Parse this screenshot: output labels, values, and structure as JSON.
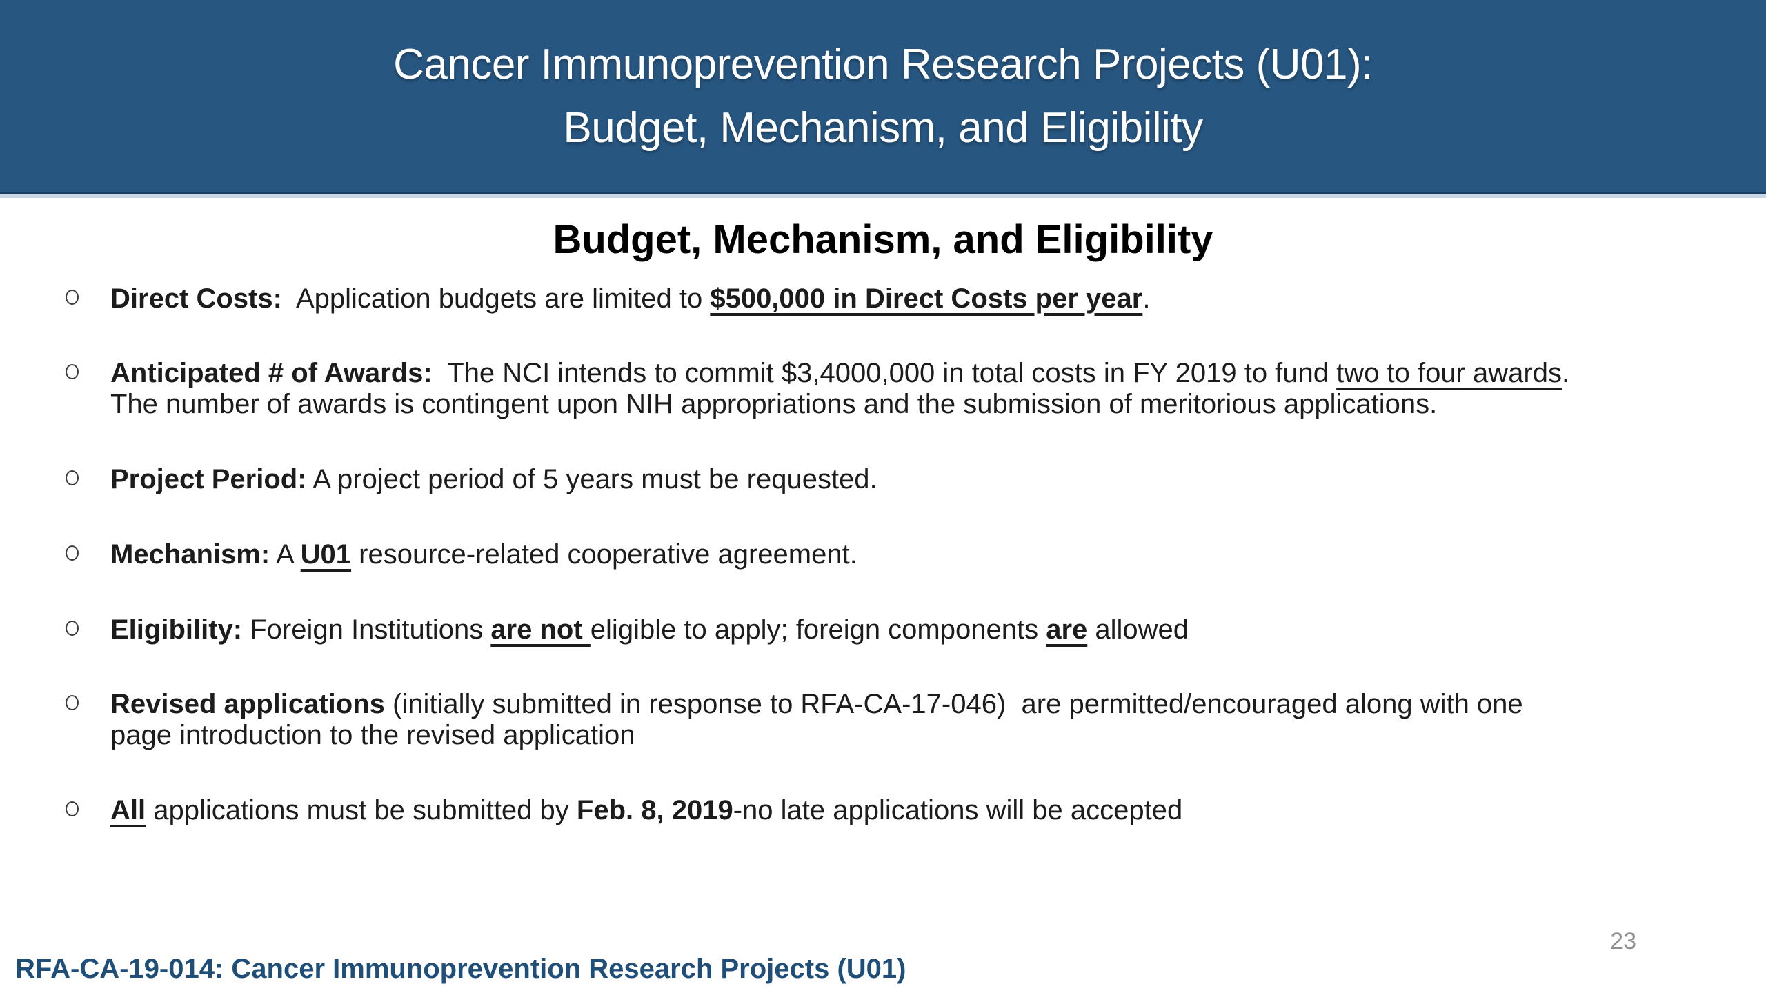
{
  "slide": {
    "header": {
      "title_line1": "Cancer Immunoprevention Research Projects (U01):",
      "title_line2": "Budget, Mechanism, and Eligibility"
    },
    "body_heading": "Budget, Mechanism, and Eligibility",
    "bullets": [
      {
        "segments": [
          {
            "t": "Direct Costs:",
            "b": true
          },
          {
            "t": "  Application budgets are limited to "
          },
          {
            "t": "$500,000 in Direct Costs per year",
            "b": true,
            "u": true
          },
          {
            "t": "."
          }
        ]
      },
      {
        "segments": [
          {
            "t": "Anticipated # of Awards:",
            "b": true
          },
          {
            "t": "  The NCI intends to commit $3,4000,000 in total costs in FY 2019 to fund "
          },
          {
            "t": "two to four awards",
            "u": true
          },
          {
            "t": "."
          },
          {
            "br": true
          },
          {
            "t": "The number of awards is contingent upon NIH appropriations and the submission of meritorious applications."
          }
        ]
      },
      {
        "segments": [
          {
            "t": "Project Period:",
            "b": true
          },
          {
            "t": " A project period of 5 years must be requested."
          }
        ]
      },
      {
        "segments": [
          {
            "t": "Mechanism:",
            "b": true
          },
          {
            "t": " A "
          },
          {
            "t": "U01",
            "b": true,
            "u": true
          },
          {
            "t": " resource-related cooperative agreement."
          }
        ]
      },
      {
        "segments": [
          {
            "t": "Eligibility:",
            "b": true
          },
          {
            "t": " Foreign Institutions "
          },
          {
            "t": "are not ",
            "b": true,
            "u": true
          },
          {
            "t": "eligible to apply; foreign components "
          },
          {
            "t": "are",
            "b": true,
            "u": true
          },
          {
            "t": " allowed"
          }
        ]
      },
      {
        "segments": [
          {
            "t": "Revised applications",
            "b": true
          },
          {
            "t": " (initially submitted in response to RFA-CA-17-046)  are permitted/encouraged along with one"
          },
          {
            "br": true
          },
          {
            "t": "page introduction to the revised application"
          }
        ]
      },
      {
        "segments": [
          {
            "t": "All",
            "b": true,
            "u": true
          },
          {
            "t": " applications must be submitted by "
          },
          {
            "t": "Feb. 8, 2019",
            "b": true
          },
          {
            "t": "-no late applications will be accepted"
          }
        ]
      }
    ],
    "footer": "RFA-CA-19-014: Cancer Immunoprevention Research Projects (U01)",
    "page_number": "23"
  },
  "colors": {
    "header_bg": "#275680",
    "header_text": "#ffffff",
    "header_edge_dark": "#1c3f60",
    "header_edge_light": "#c9d7e5",
    "body_text": "#1c1c1c",
    "footer_text": "#1f4e79",
    "page_number": "#8e8e8e"
  }
}
